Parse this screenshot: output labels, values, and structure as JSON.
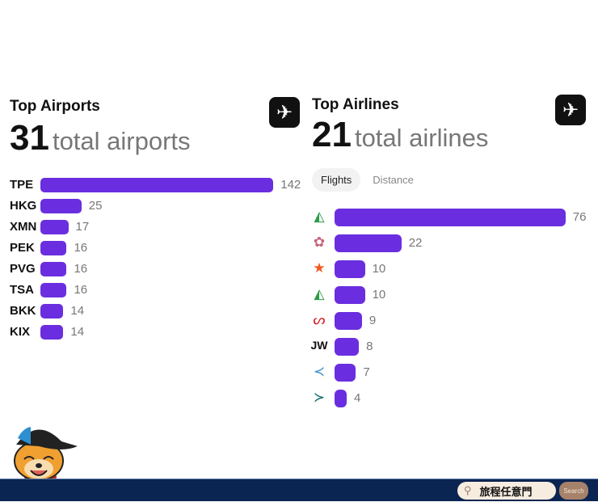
{
  "airports": {
    "title": "Top Airports",
    "count": "31",
    "count_label": "total airports",
    "icon": "airplane-icon",
    "items": [
      {
        "code": "TPE",
        "value": 142
      },
      {
        "code": "HKG",
        "value": 25
      },
      {
        "code": "XMN",
        "value": 17
      },
      {
        "code": "PEK",
        "value": 16
      },
      {
        "code": "PVG",
        "value": 16
      },
      {
        "code": "TSA",
        "value": 16
      },
      {
        "code": "BKK",
        "value": 14
      },
      {
        "code": "KIX",
        "value": 14
      }
    ]
  },
  "airlines": {
    "title": "Top Airlines",
    "count": "21",
    "count_label": "total airlines",
    "icon": "airplane-icon",
    "tabs": [
      {
        "label": "Flights",
        "active": true
      },
      {
        "label": "Distance",
        "active": false
      }
    ],
    "items": [
      {
        "logo": "eva-air-logo",
        "text": "",
        "value": 76
      },
      {
        "logo": "china-airlines-logo",
        "text": "",
        "value": 22
      },
      {
        "logo": "tigerair-star-logo",
        "text": "",
        "value": 10
      },
      {
        "logo": "uni-air-logo",
        "text": "",
        "value": 10
      },
      {
        "logo": "air-china-logo",
        "text": "",
        "value": 9
      },
      {
        "logo": "text",
        "text": "JW",
        "value": 8
      },
      {
        "logo": "starlux-logo",
        "text": "",
        "value": 7
      },
      {
        "logo": "cathay-logo",
        "text": "",
        "value": 4
      }
    ]
  },
  "colors": {
    "bar": "#6a2ee0",
    "footer": "#0b2552"
  },
  "footer": {
    "search_text": "旅程任意門",
    "search_button": "Search"
  }
}
